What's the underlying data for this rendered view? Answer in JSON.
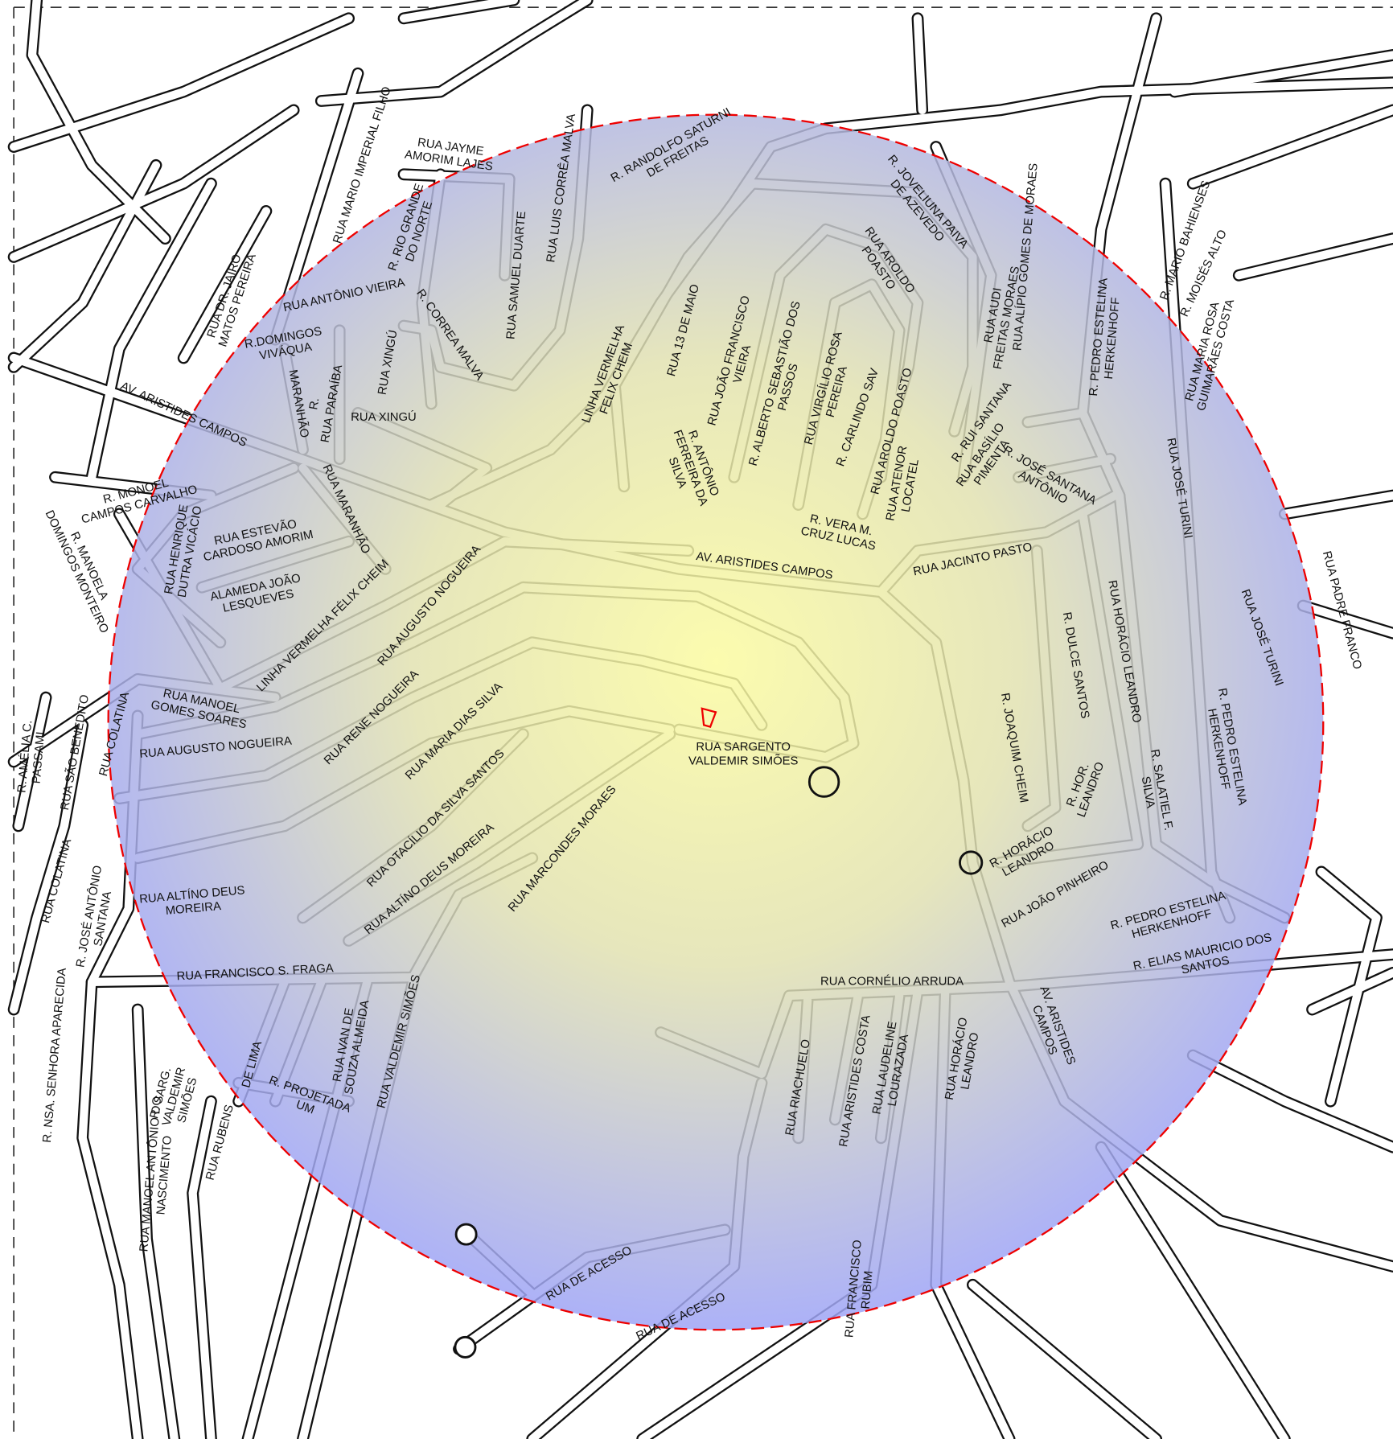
{
  "labels": [
    [
      "RUA JAYME",
      "AMORIM LAJES"
    ],
    [
      "R. RANDOLFO SATURNI",
      "DE FREITAS"
    ],
    [
      "RUA MARIO IMPERIAL FILHO"
    ],
    [
      "R. RIO GRANDE",
      "DO NORTE"
    ],
    [
      "RUA LUIS CORRÊA MALVA"
    ],
    [
      "RUA SAMUEL DUARTE"
    ],
    [
      "RUA ANTÔNIO VIEIRA"
    ],
    [
      "R.DOMINGOS",
      "VIVÁQUA"
    ],
    [
      "RUA DR. JAIRO",
      "MATOS PEREIRA"
    ],
    [
      "R. CORREA MALVA"
    ],
    [
      "RUA XINGÚ"
    ],
    [
      "RUA PARAÍBA"
    ],
    [
      "R."
    ],
    [
      "MARANHÃO"
    ],
    [
      "RUA XINGÚ"
    ],
    [
      "AV. ARISTIDES CAMPOS"
    ],
    [
      "RUA MARANHÃO"
    ],
    [
      "R. MONOEL",
      "CAMPOS CARVALHO"
    ],
    [
      "R. MANOELA",
      "DOMINGOS MONTEIRO"
    ],
    [
      "RUA HENRIQUE",
      "DUTRA VICÁCIO"
    ],
    [
      "RUA ESTEVÃO",
      "CARDOSO AMORIM"
    ],
    [
      "ALAMEDA JOÃO",
      "LESQUEVES"
    ],
    [
      "LINHA VERMELHA FÉLIX CHEIM"
    ],
    [
      "RUA AUGUSTO NOGUEIRA"
    ],
    [
      "LINHA VERMELHA",
      "FELIX CHEIM"
    ],
    [
      "RUA 13 DE MAIO"
    ],
    [
      "RUA JOÃO FRANCISCO",
      "VIEIRA"
    ],
    [
      "R. ALBERTO SEBASTIÃO DOS",
      "PASSOS"
    ],
    [
      "RUA VIRGÍLIO ROSA",
      "PEREIRA"
    ],
    [
      "R. CARLINDO SAV"
    ],
    [
      "R. ANTÔNIO",
      "FERREIRA DA",
      "SILVA"
    ],
    [
      "R. JOVELIUNA PAIVA",
      "DE AZEVEDO"
    ],
    [
      "RUA AROLDO",
      "POASTO"
    ],
    [
      "RUA AROLDO POASTO"
    ],
    [
      "RUA ATENOR",
      "LOCATEL"
    ],
    [
      "R. VERA M.",
      "CRUZ LUCAS"
    ],
    [
      "AV. ARISTIDES CAMPOS"
    ],
    [
      "RUA ALÍPIO GOMES DE MORAES"
    ],
    [
      "RUA AUDI",
      "FREITAS MORAES"
    ],
    [
      "R. RUI SANTANA"
    ],
    [
      "RUA BASÍLIO",
      "PIMENTA"
    ],
    [
      "R. JOSÉ SANTANA",
      "ANTÔNIO"
    ],
    [
      "R. PEDRO ESTELINA",
      "HERKENHOFF"
    ],
    [
      "R. MARIO BAHIENSES"
    ],
    [
      "R. MOISÉS ALTO"
    ],
    [
      "RUA MARIA ROSA",
      "GUIMARÃES COSTA"
    ],
    [
      "RUA JOSÉ TURINI"
    ],
    [
      "RUA JOSÉ TURINI"
    ],
    [
      "RUA PADRE FRANCO"
    ],
    [
      "RUA JACINTO PASTO"
    ],
    [
      "R. DULCE SANTOS"
    ],
    [
      "RUA HORÁCIO LEANDRO"
    ],
    [
      "R. JOAQUIM CHEIM"
    ],
    [
      "R. HOR.",
      "LEANDRO"
    ],
    [
      "R. HORÁCIO",
      "LEANDRO"
    ],
    [
      "R. SALATIEL F.",
      "SILVA"
    ],
    [
      "R. PEDRO ESTELINA",
      "HERKENHOFF"
    ],
    [
      "RUA JOÃO PINHEIRO"
    ],
    [
      "R. PEDRO ESTELINA",
      "HERKENHOFF"
    ],
    [
      "R. ELIAS MAURICIO DOS",
      "SANTOS"
    ],
    [
      "RUA CORNÉLIO ARRUDA"
    ],
    [
      "AV. ARISTIDES",
      "CAMPOS"
    ],
    [
      "RUA RIACHUELO"
    ],
    [
      "RUA ARISTIDES COSTA"
    ],
    [
      "RUA LAUDELINE",
      "LOURAZADA"
    ],
    [
      "RUA HORÁCIO",
      "LEANDRO"
    ],
    [
      "RUA FRANCISCO",
      "RUBIM"
    ],
    [
      "RUA DE ACESSO"
    ],
    [
      "RUA DE ACESSO"
    ],
    [
      "RUA SARGENTO",
      "VALDEMIR SIMÕES"
    ],
    [
      "RUA MARIA DIAS SILVA"
    ],
    [
      "RUA RENE NOGUEIRA"
    ],
    [
      "RUA MANOEL",
      "GOMES SOARES"
    ],
    [
      "RUA AUGUSTO NOGUEIRA"
    ],
    [
      "RUA OTACÍLIO DA SILVA SANTOS"
    ],
    [
      "RUA ALTÍNO DEUS MOREIRA"
    ],
    [
      "RUA MARCONDES MORAES"
    ],
    [
      "RUA ALTÍNO DEUS",
      "MOREIRA"
    ],
    [
      "RUA FRANCISCO S. FRAGA"
    ],
    [
      "RUA VALDEMIR SIMÕES"
    ],
    [
      "RUA IVAN DE",
      "SOUZA ALMEIDA"
    ],
    [
      "R. PROJETADA",
      "UM"
    ],
    [
      "RUA RUBENS"
    ],
    [
      "DE LIMA"
    ],
    [
      "R. SARG.",
      "VALDEMIR",
      "SIMÕES"
    ],
    [
      "RUA MANOEL ANTÔNIO DO",
      "NASCIMENTO"
    ],
    [
      "R. NSA. SENHORA APARECIDA"
    ],
    [
      "RUA COLATINA"
    ],
    [
      "R. JOSÉ ANTÔNIO",
      "SANTANA"
    ],
    [
      "RUA COLATINA"
    ],
    [
      "RUA SÃO BENEDITO"
    ],
    [
      "R. AMÉLIA C.",
      "PASSAMI"
    ]
  ]
}
